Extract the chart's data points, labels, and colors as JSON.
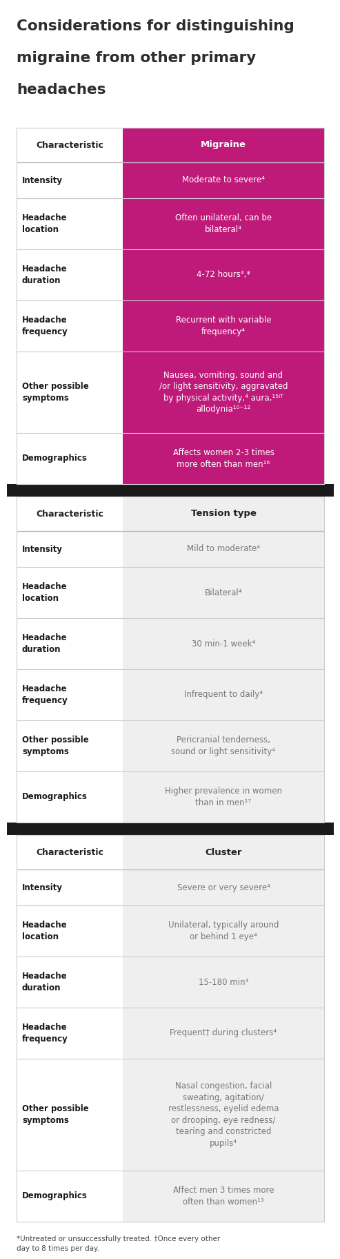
{
  "title_lines": [
    "Considerations for distinguishing",
    "migraine from other primary",
    "headaches"
  ],
  "title_color": "#2d2d2d",
  "bg_color": "#ffffff",
  "dark_bar_color": "#1a1a1a",
  "migraine_color": "#bf1a7a",
  "tension_color": "#efefef",
  "cluster_color": "#efefef",
  "sections": [
    {
      "header_left": "Characteristic",
      "header_right": "Migraine",
      "header_right_bg": "#bf1a7a",
      "header_right_text": "#ffffff",
      "header_left_text": "#222222",
      "value_bg": "#bf1a7a",
      "value_text_color": "#ffffff",
      "left_text_color": "#1a1a1a",
      "rows": [
        {
          "left": "Intensity",
          "right": "Moderate to severe⁴"
        },
        {
          "left": "Headache\nlocation",
          "right": "Often unilateral, can be\nbilateral⁴"
        },
        {
          "left": "Headache\nduration",
          "right": "4-72 hours⁴,*"
        },
        {
          "left": "Headache\nfrequency",
          "right": "Recurrent with variable\nfrequency⁴"
        },
        {
          "left": "Other possible\nsymptoms",
          "right": "Nausea, vomiting, sound and\n/or light sensitivity, aggravated\nby physical activity,⁴ aura,¹⁵ⁱᵀ\nallodynia¹⁰⁻¹²"
        },
        {
          "left": "Demographics",
          "right": "Affects women 2-3 times\nmore often than men¹⁶"
        }
      ]
    },
    {
      "header_left": "Characteristic",
      "header_right": "Tension type",
      "header_right_bg": "#efefef",
      "header_right_text": "#222222",
      "header_left_text": "#222222",
      "value_bg": "#efefef",
      "value_text_color": "#777777",
      "left_text_color": "#1a1a1a",
      "rows": [
        {
          "left": "Intensity",
          "right": "Mild to moderate⁴"
        },
        {
          "left": "Headache\nlocation",
          "right": "Bilateral⁴"
        },
        {
          "left": "Headache\nduration",
          "right": "30 min-1 week⁴"
        },
        {
          "left": "Headache\nfrequency",
          "right": "Infrequent to daily⁴"
        },
        {
          "left": "Other possible\nsymptoms",
          "right": "Pericranial tenderness,\nsound or light sensitivity⁴"
        },
        {
          "left": "Demographics",
          "right": "Higher prevalence in women\nthan in men¹⁷"
        }
      ]
    },
    {
      "header_left": "Characteristic",
      "header_right": "Cluster",
      "header_right_bg": "#efefef",
      "header_right_text": "#222222",
      "header_left_text": "#222222",
      "value_bg": "#efefef",
      "value_text_color": "#777777",
      "left_text_color": "#1a1a1a",
      "rows": [
        {
          "left": "Intensity",
          "right": "Severe or very severe⁴"
        },
        {
          "left": "Headache\nlocation",
          "right": "Unilateral, typically around\nor behind 1 eye⁴"
        },
        {
          "left": "Headache\nduration",
          "right": "15-180 min⁴"
        },
        {
          "left": "Headache\nfrequency",
          "right": "Frequent† during clusters⁴"
        },
        {
          "left": "Other possible\nsymptoms",
          "right": "Nasal congestion, facial\nsweating, agitation/\nrestlessness, eyelid edema\nor drooping, eye redness/\ntearing and constricted\npupils⁴"
        },
        {
          "left": "Demographics",
          "right": "Affect men 3 times more\noften than women¹³"
        }
      ]
    }
  ],
  "footnote": "*Untreated or unsuccessfully treated. †Once every other\nday to 8 times per day."
}
